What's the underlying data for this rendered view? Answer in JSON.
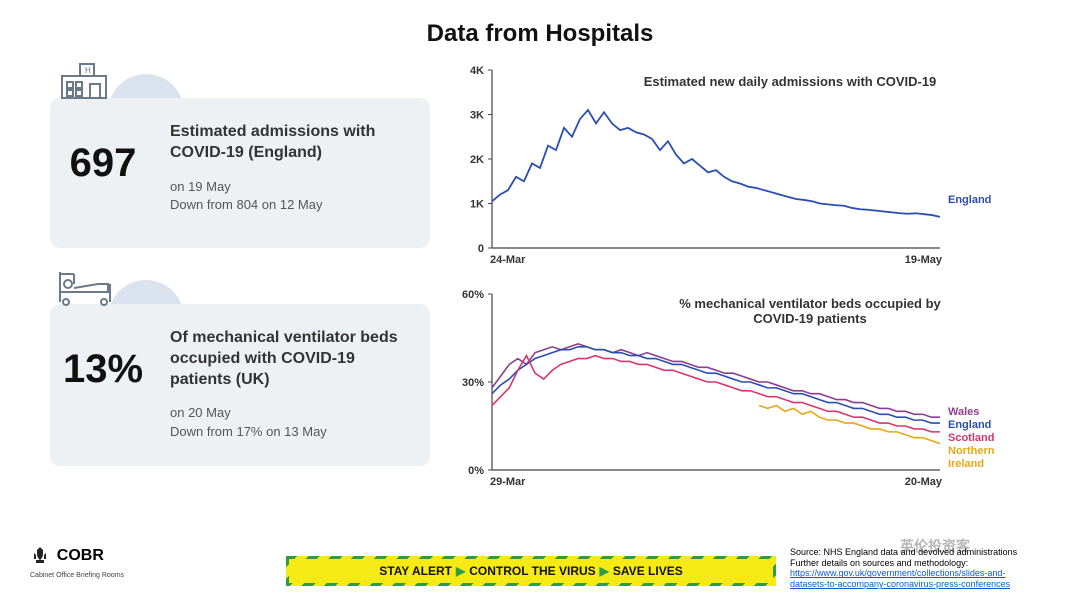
{
  "title": "Data from Hospitals",
  "card1": {
    "value": "697",
    "desc": "Estimated admissions with COVID-19 (England)",
    "sub1": "on 19 May",
    "sub2": "Down from 804 on 12 May"
  },
  "card2": {
    "value": "13%",
    "desc": "Of mechanical ventilator beds occupied with COVID-19 patients (UK)",
    "sub1": "on 20 May",
    "sub2": "Down from 17% on 13 May"
  },
  "chart1": {
    "type": "line",
    "title": "Estimated new daily admissions with COVID-19",
    "x_axis": {
      "min": 0,
      "max": 56,
      "label_start": "24-Mar",
      "label_end": "19-May"
    },
    "y_axis": {
      "min": 0,
      "max": 4000,
      "ticks": [
        0,
        1000,
        2000,
        3000,
        4000
      ],
      "tick_labels": [
        "0",
        "1K",
        "2K",
        "3K",
        "4K"
      ]
    },
    "series": [
      {
        "name": "England",
        "color": "#2b4fb0",
        "data": [
          1050,
          1200,
          1300,
          1600,
          1500,
          1900,
          1800,
          2300,
          2200,
          2700,
          2500,
          2900,
          3100,
          2800,
          3050,
          2800,
          2650,
          2700,
          2600,
          2550,
          2450,
          2200,
          2400,
          2100,
          1900,
          2000,
          1850,
          1700,
          1750,
          1600,
          1500,
          1450,
          1380,
          1350,
          1300,
          1250,
          1200,
          1150,
          1100,
          1080,
          1050,
          1000,
          980,
          960,
          950,
          900,
          870,
          860,
          840,
          820,
          800,
          780,
          770,
          780,
          760,
          740,
          700
        ]
      }
    ],
    "font_sizes": {
      "title": 13,
      "ticks": 11,
      "legend": 11
    },
    "axis_color": "#444",
    "line_width": 1.8
  },
  "chart2": {
    "type": "line",
    "title": "% mechanical ventilator beds occupied by COVID-19 patients",
    "x_axis": {
      "min": 0,
      "max": 52,
      "label_start": "29-Mar",
      "label_end": "20-May"
    },
    "y_axis": {
      "min": 0,
      "max": 60,
      "ticks": [
        0,
        30,
        60
      ],
      "tick_labels": [
        "0%",
        "30%",
        "60%"
      ]
    },
    "series": [
      {
        "name": "Wales",
        "color": "#8c3e8f",
        "data": [
          28,
          32,
          36,
          38,
          36,
          40,
          41,
          42,
          41,
          42,
          43,
          42,
          41,
          41,
          40,
          41,
          40,
          39,
          40,
          39,
          38,
          37,
          37,
          36,
          35,
          35,
          34,
          33,
          33,
          32,
          31,
          30,
          30,
          29,
          28,
          27,
          27,
          26,
          26,
          25,
          24,
          24,
          23,
          23,
          22,
          21,
          21,
          20,
          20,
          19,
          19,
          18,
          18
        ]
      },
      {
        "name": "England",
        "color": "#2b4fb0",
        "data": [
          26,
          29,
          31,
          34,
          36,
          38,
          39,
          40,
          41,
          41,
          42,
          42,
          41,
          41,
          40,
          40,
          39,
          39,
          38,
          38,
          37,
          36,
          36,
          35,
          34,
          33,
          33,
          32,
          31,
          30,
          30,
          29,
          28,
          28,
          27,
          26,
          26,
          25,
          24,
          23,
          23,
          22,
          21,
          21,
          20,
          19,
          19,
          18,
          18,
          17,
          17,
          16,
          16
        ]
      },
      {
        "name": "Scotland",
        "color": "#d93670",
        "data": [
          22,
          25,
          28,
          34,
          39,
          33,
          31,
          34,
          36,
          37,
          38,
          38,
          39,
          38,
          38,
          37,
          37,
          36,
          36,
          35,
          34,
          34,
          33,
          32,
          31,
          30,
          30,
          29,
          28,
          27,
          27,
          26,
          25,
          25,
          24,
          23,
          23,
          22,
          21,
          20,
          20,
          19,
          18,
          18,
          17,
          16,
          16,
          15,
          15,
          14,
          14,
          13,
          13
        ]
      },
      {
        "name": "Northern Ireland",
        "color": "#e6a817",
        "data": [
          null,
          null,
          null,
          null,
          null,
          null,
          null,
          null,
          null,
          null,
          null,
          null,
          null,
          null,
          null,
          null,
          null,
          null,
          null,
          null,
          null,
          null,
          null,
          null,
          null,
          null,
          null,
          null,
          null,
          null,
          null,
          22,
          21,
          22,
          20,
          21,
          19,
          20,
          18,
          17,
          17,
          16,
          16,
          15,
          14,
          14,
          13,
          13,
          12,
          11,
          11,
          10,
          9
        ]
      }
    ],
    "font_sizes": {
      "title": 13,
      "ticks": 11,
      "legend": 11
    },
    "axis_color": "#444",
    "line_width": 1.6
  },
  "footer": {
    "cobr": "COBR",
    "cobr_sub": "Cabinet Office Briefing Rooms",
    "banner1": "STAY ALERT",
    "banner2": "CONTROL THE VIRUS",
    "banner3": "SAVE LIVES",
    "source1": "Source: NHS England data and devolved administrations",
    "source2": "Further details on sources and methodology:",
    "source_link": "https://www.gov.uk/government/collections/slides-and-datasets-to-accompany-coronavirus-press-conferences"
  },
  "watermark": "英伦投资客"
}
